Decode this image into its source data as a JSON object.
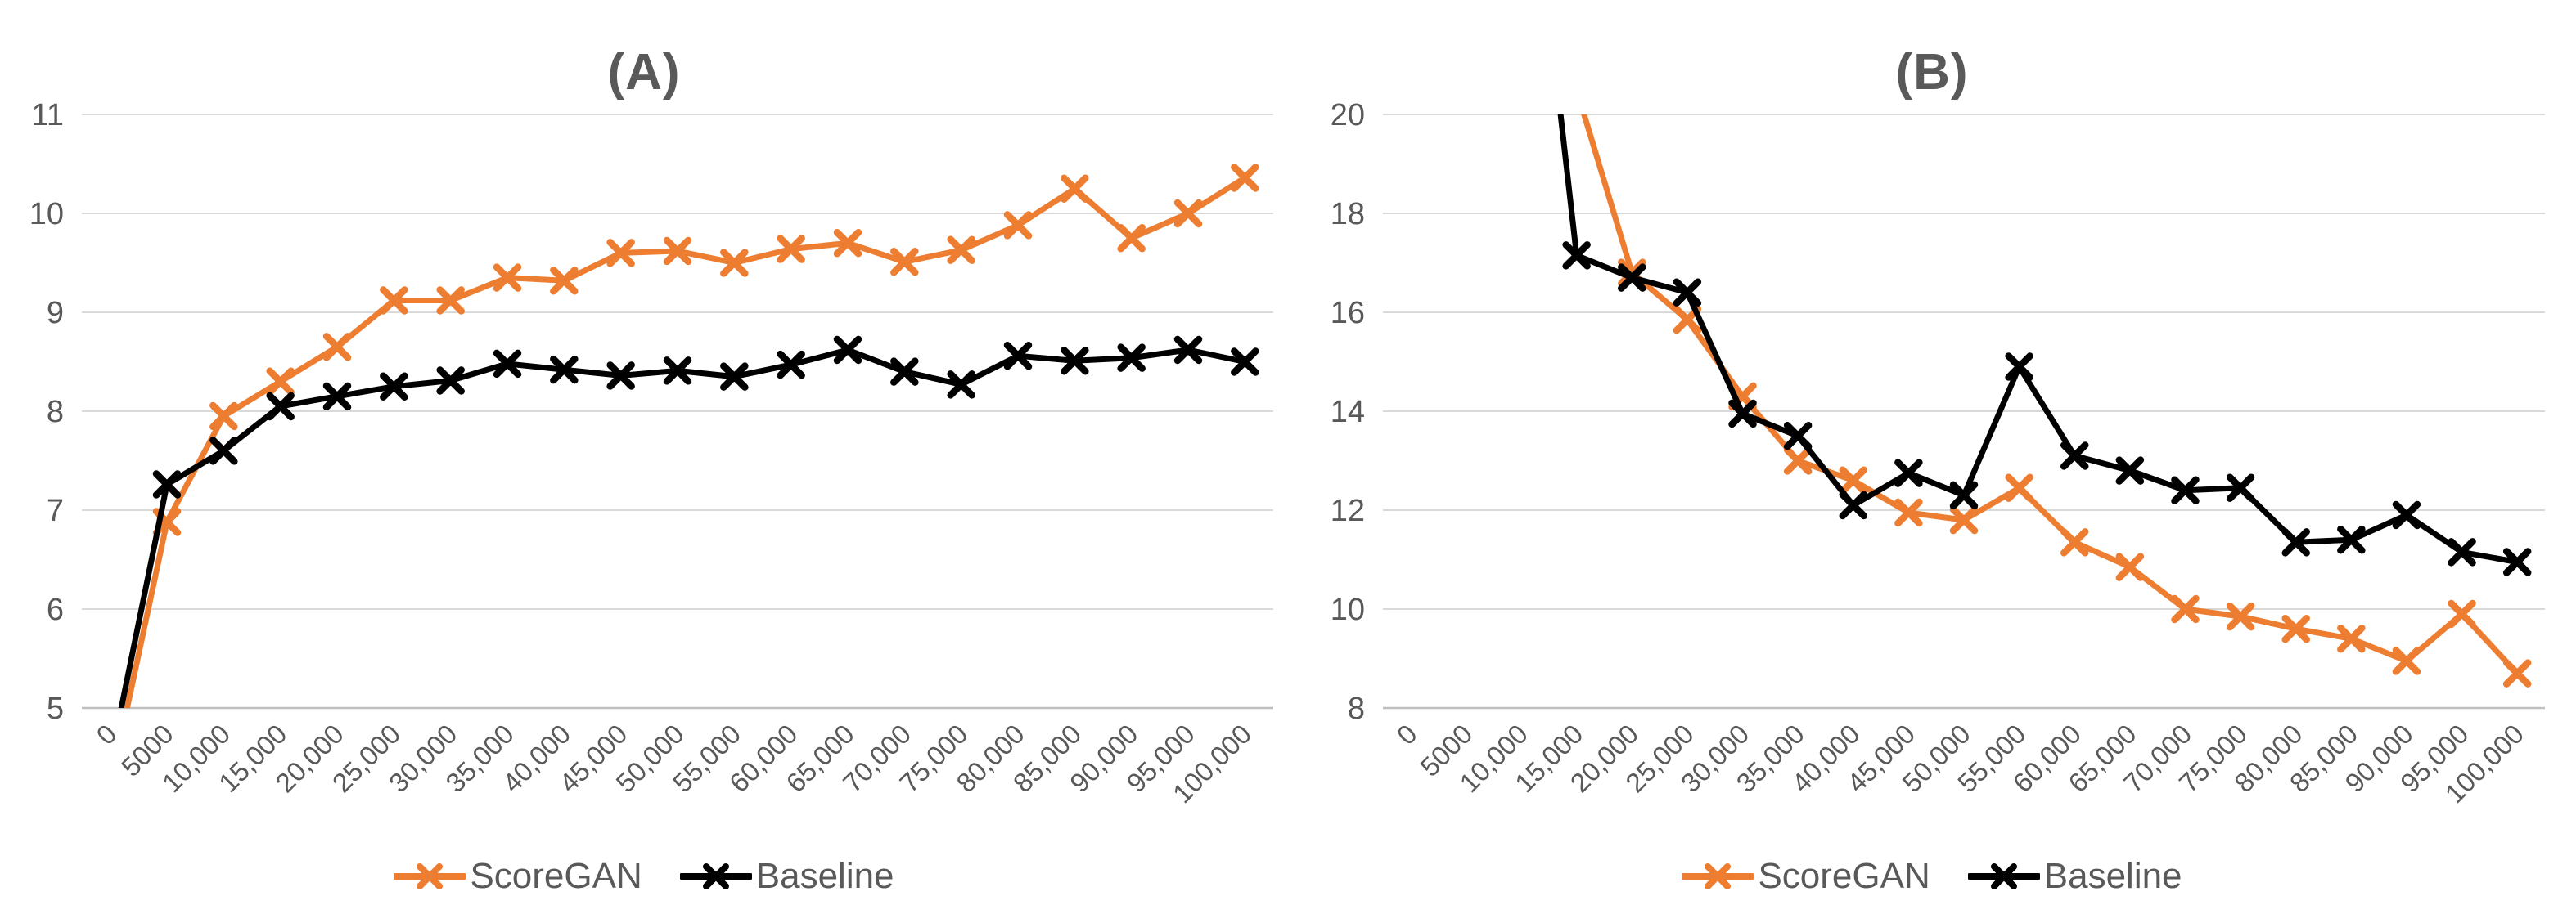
{
  "figure": {
    "background": "#FFFFFF",
    "text_color": "#595959",
    "gridline_color": "#D9D9D9",
    "axis_line_color": "#BFBFBF"
  },
  "chart_data": [
    {
      "type": "line",
      "title": "(A)",
      "grid": true,
      "legend_position": "bottom",
      "x_categories": [
        "0",
        "5000",
        "10,000",
        "15,000",
        "20,000",
        "25,000",
        "30,000",
        "35,000",
        "40,000",
        "45,000",
        "50,000",
        "55,000",
        "60,000",
        "65,000",
        "70,000",
        "75,000",
        "80,000",
        "85,000",
        "90,000",
        "95,000",
        "100,000"
      ],
      "ylim": [
        5,
        11
      ],
      "ytick_step": 1,
      "ytick_labels": [
        "5",
        "6",
        "7",
        "8",
        "9",
        "10",
        "11"
      ],
      "series": [
        {
          "name": "ScoreGAN",
          "color": "#ED7D31",
          "marker": "x",
          "values": [
            4.2,
            6.88,
            7.95,
            8.3,
            8.65,
            9.12,
            9.12,
            9.35,
            9.32,
            9.6,
            9.62,
            9.5,
            9.64,
            9.7,
            9.51,
            9.63,
            9.88,
            10.25,
            9.75,
            10.0,
            10.36
          ]
        },
        {
          "name": "Baseline",
          "color": "#000000",
          "marker": "x",
          "values": [
            4.45,
            7.26,
            7.6,
            8.05,
            8.15,
            8.25,
            8.31,
            8.48,
            8.42,
            8.36,
            8.41,
            8.35,
            8.47,
            8.62,
            8.4,
            8.27,
            8.56,
            8.51,
            8.54,
            8.62,
            8.5
          ]
        }
      ]
    },
    {
      "type": "line",
      "title": "(B)",
      "grid": true,
      "legend_position": "bottom",
      "x_categories": [
        "0",
        "5000",
        "10,000",
        "15,000",
        "20,000",
        "25,000",
        "30,000",
        "35,000",
        "40,000",
        "45,000",
        "50,000",
        "55,000",
        "60,000",
        "65,000",
        "70,000",
        "75,000",
        "80,000",
        "85,000",
        "90,000",
        "95,000",
        "100,000"
      ],
      "ylim": [
        8,
        20
      ],
      "ytick_step": 2,
      "ytick_labels": [
        "8",
        "10",
        "12",
        "14",
        "16",
        "18",
        "20"
      ],
      "series": [
        {
          "name": "ScoreGAN",
          "color": "#ED7D31",
          "marker": "x",
          "values": [
            null,
            null,
            30,
            20.5,
            16.8,
            15.85,
            14.3,
            13.0,
            12.6,
            11.95,
            11.8,
            12.45,
            11.35,
            10.85,
            10.0,
            9.85,
            9.6,
            9.4,
            8.95,
            9.9,
            8.7
          ]
        },
        {
          "name": "Baseline",
          "color": "#000000",
          "marker": "x",
          "values": [
            null,
            null,
            27,
            17.15,
            16.7,
            16.4,
            13.95,
            13.5,
            12.1,
            12.75,
            12.3,
            14.9,
            13.1,
            12.8,
            12.4,
            12.45,
            11.35,
            11.4,
            11.9,
            11.15,
            10.95
          ]
        }
      ]
    }
  ]
}
